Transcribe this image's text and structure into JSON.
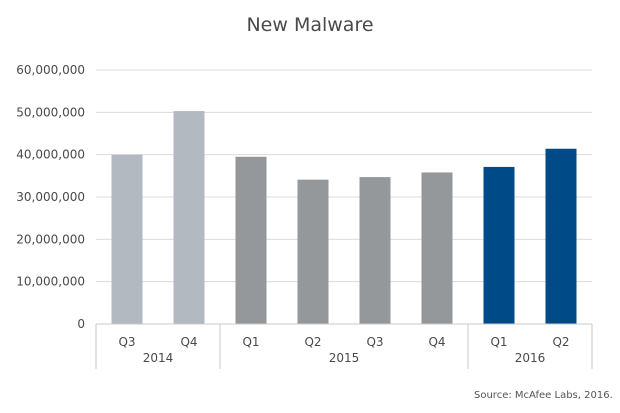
{
  "chart_data": {
    "type": "bar",
    "title": "New Malware",
    "source": "Source: McAfee Labs, 2016.",
    "ylim": [
      0,
      60000000
    ],
    "yticks": [
      "0",
      "10,000,000",
      "20,000,000",
      "30,000,000",
      "40,000,000",
      "50,000,000",
      "60,000,000"
    ],
    "categories": [
      "Q3",
      "Q4",
      "Q1",
      "Q2",
      "Q3",
      "Q4",
      "Q1",
      "Q2"
    ],
    "years": [
      {
        "label": "2014",
        "start": 0,
        "end": 1
      },
      {
        "label": "2015",
        "start": 2,
        "end": 5
      },
      {
        "label": "2016",
        "start": 6,
        "end": 7
      }
    ],
    "values": [
      40000000,
      50300000,
      39500000,
      34100000,
      34700000,
      35800000,
      37100000,
      41400000
    ],
    "bar_colors": [
      "#b2b9c0",
      "#b2b9c0",
      "#95989a",
      "#95989a",
      "#95989a",
      "#95989a",
      "#004b87",
      "#004b87"
    ],
    "grid": true,
    "gridline_color": "#dcdcdc"
  }
}
